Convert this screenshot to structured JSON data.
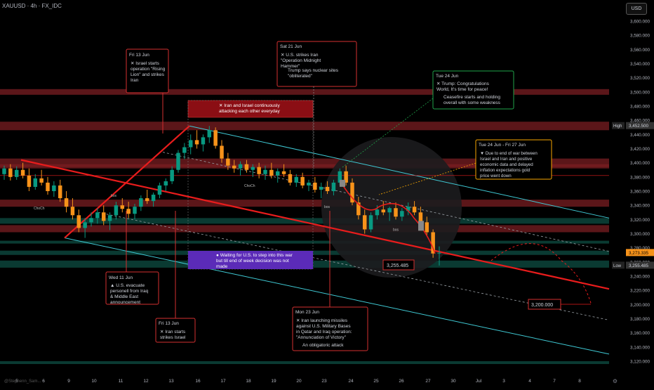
{
  "header": {
    "symbol": "XAUUSD · 4h · FX_IDC",
    "currency": "USD",
    "author": "@Stephenn_Sam..."
  },
  "colors": {
    "background": "#000000",
    "bull": "#089981",
    "bear": "#f7931a",
    "red_line": "#e81c1c",
    "channel": "#3fc9d4",
    "zone_red": "#7a1e22",
    "zone_green": "#0d4d43",
    "callout_border": "#d32f2f",
    "green_callout_border": "#1fa34a",
    "orange_callout_border": "#f7a600",
    "purple_box": "#5b2bb8",
    "dark_red_box": "#8b0e14"
  },
  "chart_data": {
    "type": "candlestick",
    "title": "",
    "xlabel": "",
    "ylabel": "",
    "ylim": [
      3115,
      3630
    ],
    "y_ticks": [
      3120,
      3140,
      3160,
      3180,
      3200,
      3220,
      3240,
      3260,
      3280,
      3300,
      3320,
      3340,
      3360,
      3380,
      3400,
      3420,
      3440,
      3460,
      3480,
      3500,
      3520,
      3540,
      3560,
      3580,
      3600
    ],
    "y_tick_labels": [
      "3,120.000",
      "3,140.000",
      "3,160.000",
      "3,180.000",
      "3,200.000",
      "3,220.000",
      "3,240.000",
      "3,260.000",
      "3,280.000",
      "3,300.000",
      "3,320.000",
      "3,340.000",
      "3,360.000",
      "3,380.000",
      "3,400.000",
      "3,420.000",
      "3,440.000",
      "3,460.000",
      "3,480.000",
      "3,500.000",
      "3,520.000",
      "3,540.000",
      "3,560.000",
      "3,580.000",
      "3,600.000"
    ],
    "x_ticks": [
      "5",
      "6",
      "9",
      "10",
      "11",
      "12",
      "13",
      "16",
      "17",
      "18",
      "19",
      "20",
      "23",
      "24",
      "25",
      "26",
      "27",
      "30",
      "Jul",
      "3",
      "4",
      "7",
      "8"
    ],
    "current_price": {
      "value": 3273.335,
      "label": "3,273.335"
    },
    "high_marker": {
      "value": 3452.5,
      "label": "High",
      "value_label": "3,452.500"
    },
    "low_marker": {
      "value": 3255.485,
      "label": "Low",
      "value_label": "3,255.485"
    },
    "target_label": {
      "value": 3200.0,
      "label": "3,200.000"
    },
    "low_label": {
      "value": 3255.485,
      "label": "3,255.485"
    },
    "candles": [
      [
        3384,
        3396,
        3376,
        3392
      ],
      [
        3392,
        3398,
        3375,
        3380
      ],
      [
        3380,
        3395,
        3376,
        3390
      ],
      [
        3390,
        3400,
        3378,
        3382
      ],
      [
        3382,
        3392,
        3360,
        3366
      ],
      [
        3366,
        3384,
        3362,
        3378
      ],
      [
        3378,
        3390,
        3368,
        3372
      ],
      [
        3372,
        3380,
        3355,
        3360
      ],
      [
        3360,
        3374,
        3352,
        3368
      ],
      [
        3368,
        3376,
        3345,
        3350
      ],
      [
        3350,
        3360,
        3330,
        3338
      ],
      [
        3338,
        3350,
        3320,
        3326
      ],
      [
        3326,
        3334,
        3302,
        3308
      ],
      [
        3308,
        3322,
        3294,
        3316
      ],
      [
        3316,
        3330,
        3310,
        3322
      ],
      [
        3322,
        3336,
        3314,
        3330
      ],
      [
        3330,
        3340,
        3312,
        3318
      ],
      [
        3318,
        3330,
        3305,
        3326
      ],
      [
        3326,
        3345,
        3320,
        3340
      ],
      [
        3340,
        3350,
        3330,
        3335
      ],
      [
        3335,
        3345,
        3322,
        3328
      ],
      [
        3328,
        3342,
        3320,
        3338
      ],
      [
        3338,
        3354,
        3332,
        3350
      ],
      [
        3350,
        3362,
        3342,
        3346
      ],
      [
        3346,
        3358,
        3338,
        3355
      ],
      [
        3355,
        3372,
        3350,
        3368
      ],
      [
        3368,
        3378,
        3360,
        3374
      ],
      [
        3374,
        3395,
        3370,
        3390
      ],
      [
        3390,
        3418,
        3386,
        3414
      ],
      [
        3414,
        3428,
        3405,
        3422
      ],
      [
        3422,
        3440,
        3412,
        3432
      ],
      [
        3432,
        3446,
        3420,
        3426
      ],
      [
        3426,
        3440,
        3416,
        3436
      ],
      [
        3436,
        3452,
        3428,
        3446
      ],
      [
        3446,
        3450,
        3420,
        3424
      ],
      [
        3424,
        3432,
        3400,
        3406
      ],
      [
        3406,
        3414,
        3390,
        3396
      ],
      [
        3396,
        3404,
        3386,
        3392
      ],
      [
        3392,
        3402,
        3382,
        3398
      ],
      [
        3398,
        3404,
        3386,
        3390
      ],
      [
        3390,
        3398,
        3380,
        3394
      ],
      [
        3394,
        3400,
        3378,
        3384
      ],
      [
        3384,
        3396,
        3376,
        3390
      ],
      [
        3390,
        3400,
        3378,
        3382
      ],
      [
        3382,
        3392,
        3372,
        3388
      ],
      [
        3388,
        3398,
        3380,
        3384
      ],
      [
        3384,
        3390,
        3368,
        3372
      ],
      [
        3372,
        3384,
        3366,
        3380
      ],
      [
        3380,
        3386,
        3364,
        3368
      ],
      [
        3368,
        3376,
        3360,
        3372
      ],
      [
        3372,
        3380,
        3358,
        3362
      ],
      [
        3362,
        3372,
        3350,
        3366
      ],
      [
        3366,
        3374,
        3356,
        3360
      ],
      [
        3360,
        3376,
        3354,
        3372
      ],
      [
        3372,
        3392,
        3368,
        3388
      ],
      [
        3388,
        3396,
        3368,
        3372
      ],
      [
        3372,
        3378,
        3340,
        3344
      ],
      [
        3344,
        3352,
        3320,
        3326
      ],
      [
        3326,
        3334,
        3300,
        3306
      ],
      [
        3306,
        3330,
        3302,
        3326
      ],
      [
        3326,
        3340,
        3320,
        3334
      ],
      [
        3334,
        3346,
        3326,
        3330
      ],
      [
        3330,
        3338,
        3318,
        3336
      ],
      [
        3336,
        3344,
        3320,
        3324
      ],
      [
        3324,
        3336,
        3318,
        3332
      ],
      [
        3332,
        3344,
        3326,
        3338
      ],
      [
        3338,
        3346,
        3326,
        3330
      ],
      [
        3330,
        3338,
        3310,
        3316
      ],
      [
        3316,
        3324,
        3298,
        3302
      ],
      [
        3302,
        3306,
        3266,
        3272
      ],
      [
        3272,
        3282,
        3255,
        3273
      ]
    ]
  },
  "annotations": {
    "fri13_top": {
      "date": "Fri 13 Jun",
      "text": "Israel starts operation \"Rising Lion\" and strikes Iran"
    },
    "sat21": {
      "date": "Sat 21 Jun",
      "line1": "U.S. strikes Iran \"Operation Midnight Hammer\"",
      "line2": "Trump says nuclear sites \"obliterated\""
    },
    "tue24": {
      "date": "Tue 24 Jun",
      "line1": "Trump: Congratulations World, It's time for peace!",
      "line2": "Ceasefire starts and holding overall with some weakness"
    },
    "tue24_fri27": {
      "date": "Tue 24 Jun - Fri 27 Jun",
      "text": "Due to end of war between Israel and Iran and positive economic data and delayed inflation expectations gold price went down"
    },
    "iran_israel_box": "Iran and Israel continuously attacking each other everyday",
    "waiting_box": "Waiting for U.S. to step into this war but till end of week decision was not made",
    "wed11": {
      "date": "Wed 11 Jun",
      "text": "U.S. evacuate personell from Iraq & Middle East announcement"
    },
    "fri13_bottom": {
      "date": "Fri 13 Jun",
      "text": "Iran starts strikes Israel"
    },
    "mon23": {
      "date": "Mon 23 Jun",
      "line1": "Iran launching missiles against U.S. Military Bases in Qatar and Iraq operation: \"Annunciation of Victory\"",
      "line2": "An obligatoric attack"
    },
    "small_labels": [
      "bos",
      "ChoCh",
      "ChoCh",
      "bos",
      "bos"
    ]
  }
}
